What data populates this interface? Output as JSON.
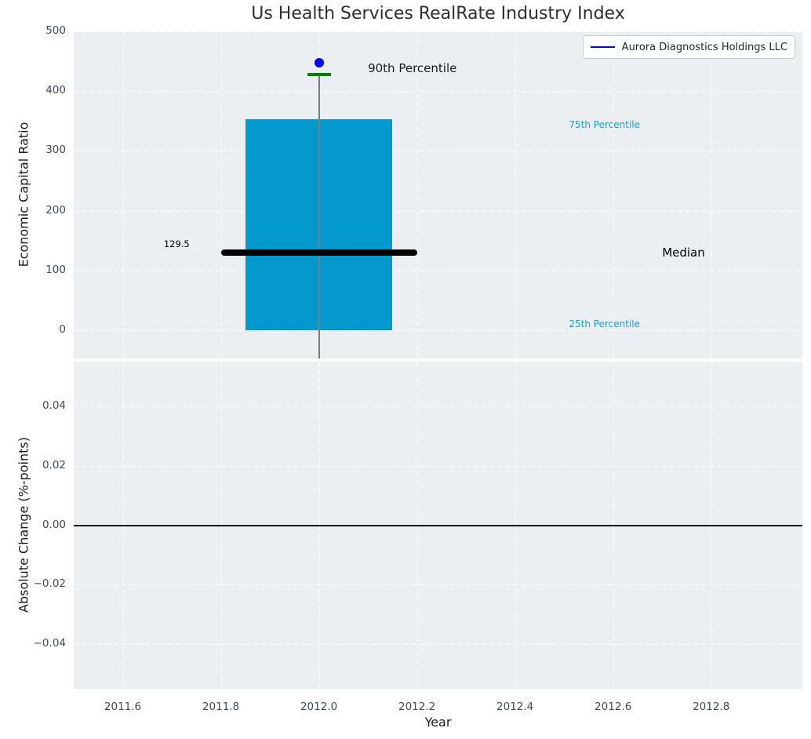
{
  "chart_data": {
    "type": "box",
    "title": "Us Health Services RealRate Industry Index",
    "xlabel": "Year",
    "grid": true,
    "xlim": [
      2011.5,
      2012.986
    ],
    "xticks": [
      2011.6,
      2011.8,
      2012.0,
      2012.2,
      2012.4,
      2012.6,
      2012.8
    ],
    "xtick_labels": [
      "2011.6",
      "2011.8",
      "2012.0",
      "2012.2",
      "2012.4",
      "2012.6",
      "2012.8"
    ],
    "legend": {
      "label": "Aurora Diagnostics Holdings LLC",
      "line_color": "#0000ff",
      "position": "upper right"
    },
    "subplots": [
      {
        "ylabel": "Economic Capital Ratio",
        "ylim": [
          -47.2,
          500
        ],
        "yticks": [
          0,
          100,
          200,
          300,
          400,
          500
        ],
        "ytick_labels": [
          "0",
          "100",
          "200",
          "300",
          "400",
          "500"
        ],
        "box": {
          "x": 2012,
          "p25": 0,
          "median": 129.5,
          "p75": 353,
          "p90": 428,
          "box_halfwidth_years": 0.15,
          "median_halfwidth_years": 0.2,
          "whisker_extends_to_axis_bottom": true,
          "box_color": "#0399cd",
          "median_color": "#000000",
          "p90_cap_color": "#008000",
          "whisker_color": "#7b7b7b"
        },
        "company_point": {
          "name": "Aurora Diagnostics Holdings LLC",
          "x": 2012,
          "y": 448,
          "color": "#0000ff"
        },
        "annotations": [
          {
            "text": "129.5",
            "x": 2011.71,
            "y": 145,
            "color": "#000000",
            "size": 11.5,
            "anchor": "middle"
          },
          {
            "text": "90th Percentile",
            "x": 2012.1,
            "y": 438,
            "color": "#1a1a1a",
            "size": 15,
            "anchor": "start"
          },
          {
            "text": "75th Percentile",
            "x": 2012.51,
            "y": 344,
            "color": "#16a0d6",
            "size": 12,
            "anchor": "start"
          },
          {
            "text": "Median",
            "x": 2012.7,
            "y": 130,
            "color": "#000000",
            "size": 15,
            "anchor": "start"
          },
          {
            "text": "25th Percentile",
            "x": 2012.51,
            "y": 10,
            "color": "#16a0d6",
            "size": 12,
            "anchor": "start"
          }
        ]
      },
      {
        "ylabel": "Absolute Change (%-points)",
        "ylim": [
          -0.0552,
          0.0552
        ],
        "yticks": [
          0.04,
          0.02,
          0.0,
          -0.02,
          -0.04
        ],
        "ytick_labels": [
          "0.04",
          "0.02",
          "0.00",
          "−0.02",
          "−0.04"
        ],
        "zero_line": 0.0,
        "zero_line_color": "#000000"
      }
    ]
  }
}
